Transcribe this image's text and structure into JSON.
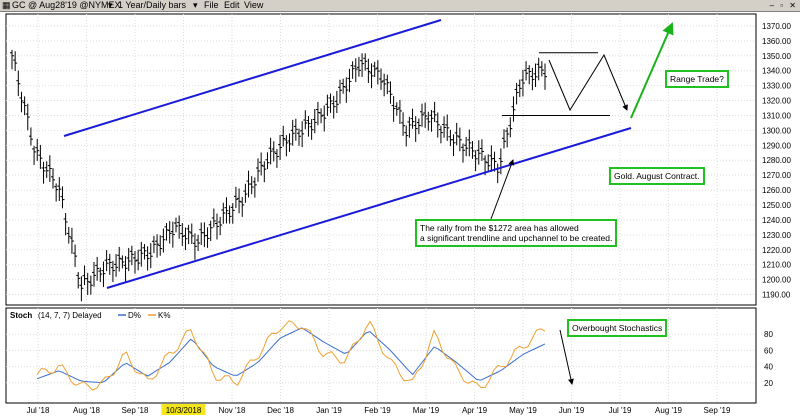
{
  "titlebar": {
    "symbol": "GC @ Aug28'19 @NYMEX",
    "range": "1 Year/Daily bars",
    "menu": [
      "File",
      "Edit",
      "View"
    ]
  },
  "stoch_label": {
    "name": "Stoch",
    "params": "(14, 7, 7) Delayed",
    "d_label": "D%",
    "k_label": "K%"
  },
  "annotations": {
    "range_trade": "Range Trade?",
    "gold_contract": "Gold. August Contract.",
    "rally_line1": "The rally from the $1272 area has allowed",
    "rally_line2": "a significant trendline and upchannel to be created.",
    "overbought": "Overbought Stochastics"
  },
  "colors": {
    "trendline": "#1a1adb",
    "green_arrow": "#19b319",
    "d_line": "#3a6fd0",
    "k_line": "#f0a030",
    "date_highlight": "#f5e61a",
    "bars": "#000000"
  },
  "chart_data": [
    {
      "type": "bar",
      "subtype": "ohlc",
      "title": "GC @ Aug28'19 @NYMEX 1 Year/Daily bars",
      "x_ticks": [
        "Jul '18",
        "Aug '18",
        "Sep '18",
        "10/3/2018",
        "Nov '18",
        "Dec '18",
        "Jan '19",
        "Feb '19",
        "Mar '19",
        "Apr '19",
        "May '19",
        "Jun '19",
        "Jul '19",
        "Aug '19",
        "Sep '19"
      ],
      "highlighted_x_tick": "10/3/2018",
      "y_ticks": [
        1190,
        1200,
        1210,
        1220,
        1230,
        1240,
        1250,
        1260,
        1270,
        1280,
        1290,
        1300,
        1310,
        1320,
        1330,
        1340,
        1350,
        1360,
        1370
      ],
      "ylim": [
        1183,
        1378
      ],
      "x": [
        "Jul '18",
        "Jul '18",
        "Aug '18",
        "Aug '18",
        "Sep '18",
        "Sep '18",
        "10/3/2018",
        "Oct '18",
        "Nov '18",
        "Nov '18",
        "Dec '18",
        "Dec '18",
        "Jan '19",
        "Jan '19",
        "Feb '19",
        "Feb '19",
        "Mar '19",
        "Mar '19",
        "Apr '19",
        "Apr '19",
        "May '19",
        "May '19",
        "Jun '19",
        "Jun '19"
      ],
      "close_points": [
        1350,
        1285,
        1262,
        1195,
        1208,
        1212,
        1218,
        1235,
        1225,
        1240,
        1255,
        1280,
        1295,
        1305,
        1320,
        1345,
        1335,
        1300,
        1310,
        1295,
        1285,
        1275,
        1335,
        1340
      ],
      "trendlines": [
        {
          "name": "upper channel",
          "from": [
            "Jul '18",
            1295
          ],
          "to": [
            "Jun '19",
            1372
          ]
        },
        {
          "name": "lower channel",
          "from": [
            "Aug '18",
            1190
          ],
          "to": [
            "Jul '19",
            1300
          ]
        }
      ],
      "range_lines": [
        1352,
        1310
      ]
    },
    {
      "type": "line",
      "title": "Stoch (14, 7, 7) Delayed",
      "y_ticks": [
        20,
        40,
        60,
        80
      ],
      "ylim": [
        0,
        100
      ],
      "series": [
        {
          "name": "D%",
          "values": [
            25,
            35,
            22,
            20,
            45,
            28,
            45,
            75,
            40,
            28,
            45,
            75,
            88,
            70,
            55,
            85,
            60,
            30,
            65,
            45,
            22,
            35,
            55,
            68
          ]
        },
        {
          "name": "K%",
          "values": [
            30,
            40,
            15,
            18,
            55,
            20,
            55,
            85,
            30,
            20,
            55,
            90,
            92,
            55,
            48,
            95,
            45,
            18,
            80,
            35,
            12,
            40,
            65,
            88
          ]
        }
      ]
    }
  ]
}
